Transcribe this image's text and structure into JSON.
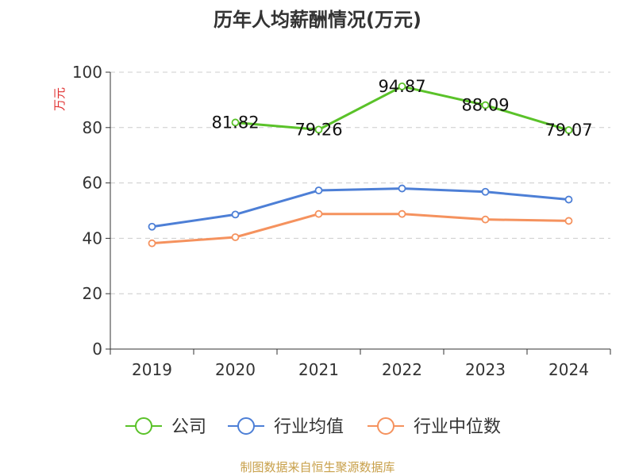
{
  "chart_data": {
    "type": "line",
    "title": "历年人均薪酬情况(万元)",
    "ylabel": "万元",
    "xlabel": "",
    "categories": [
      "2019",
      "2020",
      "2021",
      "2022",
      "2023",
      "2024"
    ],
    "ylim": [
      0,
      100
    ],
    "yticks": [
      0,
      20,
      40,
      60,
      80,
      100
    ],
    "grid": true,
    "legend_position": "bottom",
    "series": [
      {
        "name": "公司",
        "color": "#5ac229",
        "values": [
          null,
          81.82,
          79.26,
          94.87,
          88.09,
          79.07
        ],
        "labels": [
          "",
          "81.82",
          "79.26",
          "94.87",
          "88.09",
          "79.07"
        ]
      },
      {
        "name": "行业均值",
        "color": "#4d7fd6",
        "values": [
          44.2,
          48.6,
          57.3,
          58.0,
          56.8,
          54.0
        ]
      },
      {
        "name": "行业中位数",
        "color": "#f5925e",
        "values": [
          38.2,
          40.4,
          48.8,
          48.8,
          46.8,
          46.3
        ]
      }
    ],
    "source": "制图数据来自恒生聚源数据库"
  }
}
